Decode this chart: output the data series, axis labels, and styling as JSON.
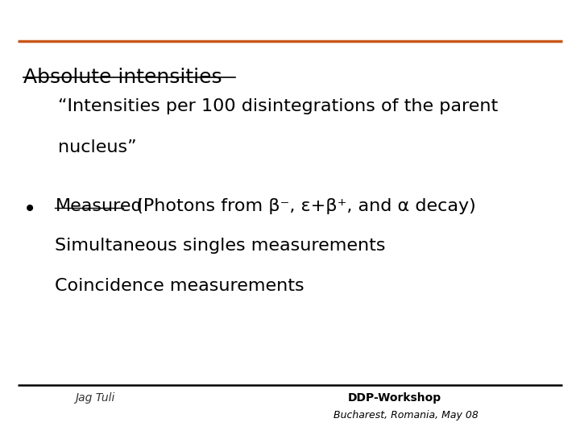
{
  "background_color": "#ffffff",
  "orange_line_color": "#c8581a",
  "black_line_color": "#000000",
  "title_text": "Absolute intensities",
  "title_fontsize": 18,
  "title_color": "#000000",
  "subtitle_line1": "“Intensities per 100 disintegrations of the parent",
  "subtitle_line2": "nucleus”",
  "subtitle_fontsize": 16,
  "subtitle_color": "#000000",
  "bullet_text_line1_prefix": "Measured",
  "bullet_text_line1_suffix": "  (Photons from β⁻, ε+β⁺, and α decay)",
  "bullet_text_line2": "Simultaneous singles measurements",
  "bullet_text_line3": "Coincidence measurements",
  "bullet_fontsize": 16,
  "bullet_color": "#000000",
  "footer_left": "Jag Tuli",
  "footer_center_top": "DDP-Workshop",
  "footer_center_bottom": "Bucharest, Romania, May 08",
  "footer_color": "#333333",
  "footer_fontsize": 10
}
